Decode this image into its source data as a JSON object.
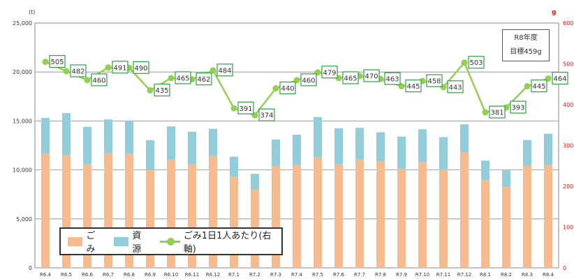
{
  "chart_data": {
    "type": "bar",
    "stacked": true,
    "categories": [
      "R6.4",
      "R6.5",
      "R6.6",
      "R6.7",
      "R6.8",
      "R6.9",
      "R6.10",
      "R6.11",
      "R6.12",
      "R7.1",
      "R7.2",
      "R7.3",
      "R7.4",
      "R7.5",
      "R7.6",
      "R7.7",
      "R7.8",
      "R7.9",
      "R7.10",
      "R7.11",
      "R7.12",
      "R8.1",
      "R8.2",
      "R8.3",
      "R8.4"
    ],
    "series": [
      {
        "name": "ごみ",
        "type": "bar",
        "axis": "left",
        "color": "#f8bb8f",
        "values": [
          11650,
          11500,
          10600,
          11700,
          11650,
          9980,
          11050,
          10600,
          11450,
          9300,
          8000,
          10400,
          10500,
          11300,
          10600,
          11050,
          10900,
          10100,
          10800,
          10050,
          11800,
          8950,
          8300,
          10400,
          10500
        ]
      },
      {
        "name": "資源",
        "type": "bar",
        "axis": "left",
        "color": "#92cddc",
        "values": [
          3650,
          4300,
          3800,
          3450,
          3400,
          3050,
          3400,
          3300,
          2750,
          2050,
          1600,
          2700,
          3100,
          4100,
          3650,
          3250,
          2950,
          3300,
          3350,
          3300,
          2850,
          2000,
          1650,
          2650,
          3200
        ]
      },
      {
        "name": "ごみ1日1人あたり(右軸)",
        "type": "line",
        "axis": "right",
        "color": "#92d050",
        "values": [
          505,
          482,
          460,
          491,
          490,
          435,
          465,
          462,
          484,
          391,
          374,
          440,
          460,
          479,
          465,
          470,
          463,
          445,
          458,
          443,
          503,
          381,
          393,
          445,
          464
        ]
      }
    ],
    "yaxis_left": {
      "unit": "(t)",
      "min": 0,
      "max": 25000,
      "ticks": [
        "0",
        "5,000",
        "10,000",
        "15,000",
        "20,000",
        "25,000"
      ]
    },
    "yaxis_right": {
      "unit": "g",
      "min": 0,
      "max": 600,
      "ticks": [
        "0",
        "100",
        "200",
        "300",
        "400",
        "500",
        "600"
      ],
      "color": "#ff0000"
    },
    "grid": true,
    "legend_position": "bottom-left",
    "annotation": {
      "line1": "R8年度",
      "line2": "目標459g"
    }
  }
}
